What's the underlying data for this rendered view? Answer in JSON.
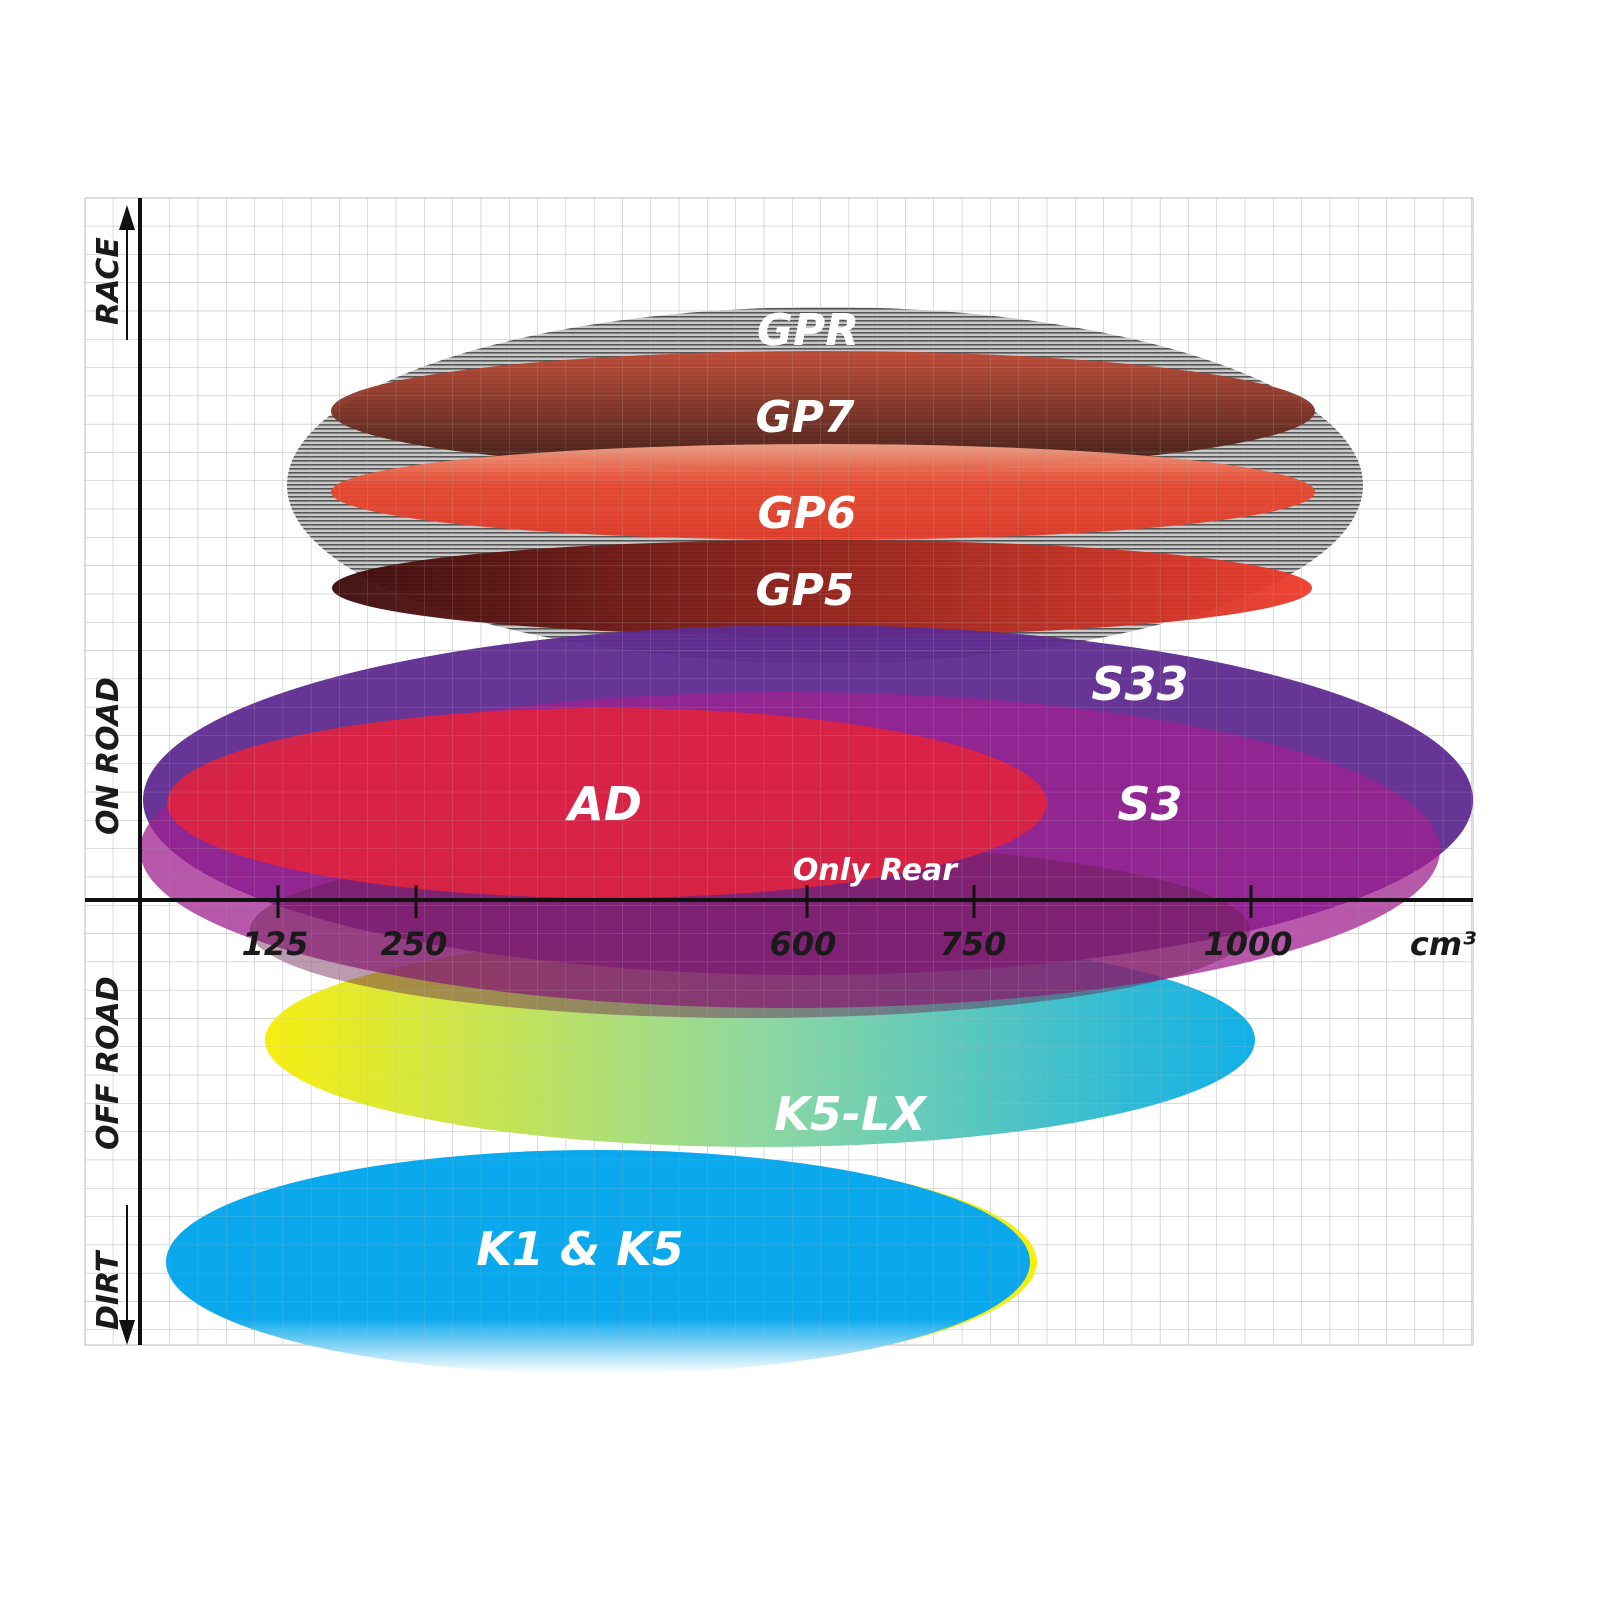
{
  "y_axis": {
    "race": "RACE",
    "on_road": "ON ROAD",
    "off_road": "OFF ROAD",
    "dirt": "DIRT"
  },
  "x_axis": {
    "ticks": [
      "125",
      "250",
      "600",
      "750",
      "1000"
    ],
    "unit": "cm³"
  },
  "products": {
    "gpr": {
      "label": "GPR",
      "color": "#9a9a9a"
    },
    "gp7": {
      "label": "GP7",
      "color": "#b0402f"
    },
    "gp6": {
      "label": "GP6",
      "color": "#e84a30"
    },
    "gp5": {
      "label": "GP5",
      "color": "#c0201f"
    },
    "s33": {
      "label": "S33",
      "color": "#5e2a90"
    },
    "s3": {
      "label": "S3",
      "color": "#9a1f8f"
    },
    "ad": {
      "label": "AD",
      "color": "#e0223e"
    },
    "only_rear": {
      "label": "Only Rear",
      "color": "#7a2060"
    },
    "k5lx": {
      "label": "K5-LX",
      "color": "#2ab8d8"
    },
    "k1k5": {
      "label": "K1 & K5",
      "color": "#0aa8ec"
    }
  }
}
